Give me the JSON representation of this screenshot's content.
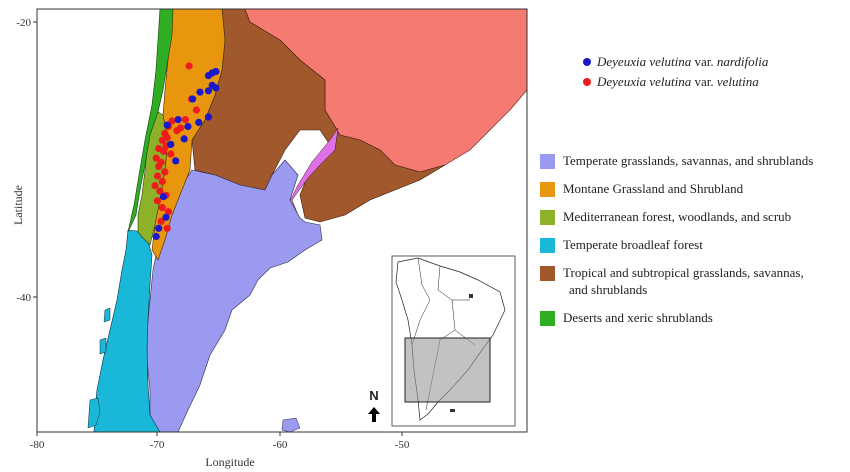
{
  "axes": {
    "xlabel": "Longitude",
    "ylabel": "Latitude",
    "xticks": [
      "-80",
      "-70",
      "-60",
      "-50"
    ],
    "yticks": [
      "-20",
      "-40"
    ]
  },
  "point_legend": [
    {
      "genus_species": "Deyeuxia velutina",
      "suffix": " var. ",
      "variety": "nardifolia",
      "color": "#1a1acc"
    },
    {
      "genus_species": "Deyeuxia velutina",
      "suffix": " var. ",
      "variety": "velutina",
      "color": "#ee1c1c"
    }
  ],
  "ecoregion_legend": [
    {
      "line1": "Temperate grasslands, savannas, and shrublands",
      "line2": "",
      "color": "#9a9af0"
    },
    {
      "line1": "Montane Grassland and Shrubland",
      "line2": "",
      "color": "#e8960e"
    },
    {
      "line1": "Mediterranean forest, woodlands, and scrub",
      "line2": "",
      "color": "#8db22a"
    },
    {
      "line1": "Temperate broadleaf forest",
      "line2": "",
      "color": "#1ab8d8"
    },
    {
      "line1": "Tropical and subtropical grasslands, savannas,",
      "line2": "and shrublands",
      "color": "#a0582c"
    },
    {
      "line1": "Deserts and xeric shrublands",
      "line2": "",
      "color": "#2fae24"
    }
  ],
  "other_colors": {
    "tropical_forest": "#f47a72",
    "flooded_grassland": "#e070e8"
  },
  "north_arrow": {
    "label": "N"
  },
  "occurrences": {
    "nardifolia": [
      [
        -65.9,
        -23.9
      ],
      [
        -65.6,
        -23.7
      ],
      [
        -65.3,
        -23.6
      ],
      [
        -65.6,
        -24.6
      ],
      [
        -65.3,
        -24.8
      ],
      [
        -65.9,
        -25.0
      ],
      [
        -66.6,
        -25.1
      ],
      [
        -67.2,
        -25.6
      ],
      [
        -65.9,
        -26.9
      ],
      [
        -66.7,
        -27.3
      ],
      [
        -67.6,
        -27.6
      ],
      [
        -68.4,
        -27.1
      ],
      [
        -69.3,
        -27.5
      ],
      [
        -67.9,
        -28.5
      ],
      [
        -69.0,
        -28.9
      ],
      [
        -68.6,
        -30.1
      ],
      [
        -69.6,
        -32.7
      ],
      [
        -69.4,
        -34.2
      ],
      [
        -70.0,
        -35.0
      ],
      [
        -70.2,
        -35.6
      ]
    ],
    "velutina": [
      [
        -67.5,
        -23.2
      ],
      [
        -67.3,
        -25.6
      ],
      [
        -66.9,
        -26.4
      ],
      [
        -67.8,
        -27.1
      ],
      [
        -68.9,
        -27.2
      ],
      [
        -69.2,
        -27.6
      ],
      [
        -68.2,
        -27.7
      ],
      [
        -68.5,
        -27.9
      ],
      [
        -69.5,
        -28.1
      ],
      [
        -69.3,
        -28.4
      ],
      [
        -69.7,
        -28.6
      ],
      [
        -69.4,
        -29.0
      ],
      [
        -70.0,
        -29.2
      ],
      [
        -69.6,
        -29.4
      ],
      [
        -69.0,
        -29.6
      ],
      [
        -70.2,
        -29.9
      ],
      [
        -69.8,
        -30.2
      ],
      [
        -70.0,
        -30.5
      ],
      [
        -69.5,
        -30.9
      ],
      [
        -70.1,
        -31.2
      ],
      [
        -69.7,
        -31.6
      ],
      [
        -70.3,
        -31.9
      ],
      [
        -69.9,
        -32.3
      ],
      [
        -69.4,
        -32.6
      ],
      [
        -70.1,
        -33.0
      ],
      [
        -69.7,
        -33.5
      ],
      [
        -69.2,
        -33.8
      ],
      [
        -69.8,
        -34.5
      ],
      [
        -69.3,
        -35.0
      ]
    ]
  }
}
